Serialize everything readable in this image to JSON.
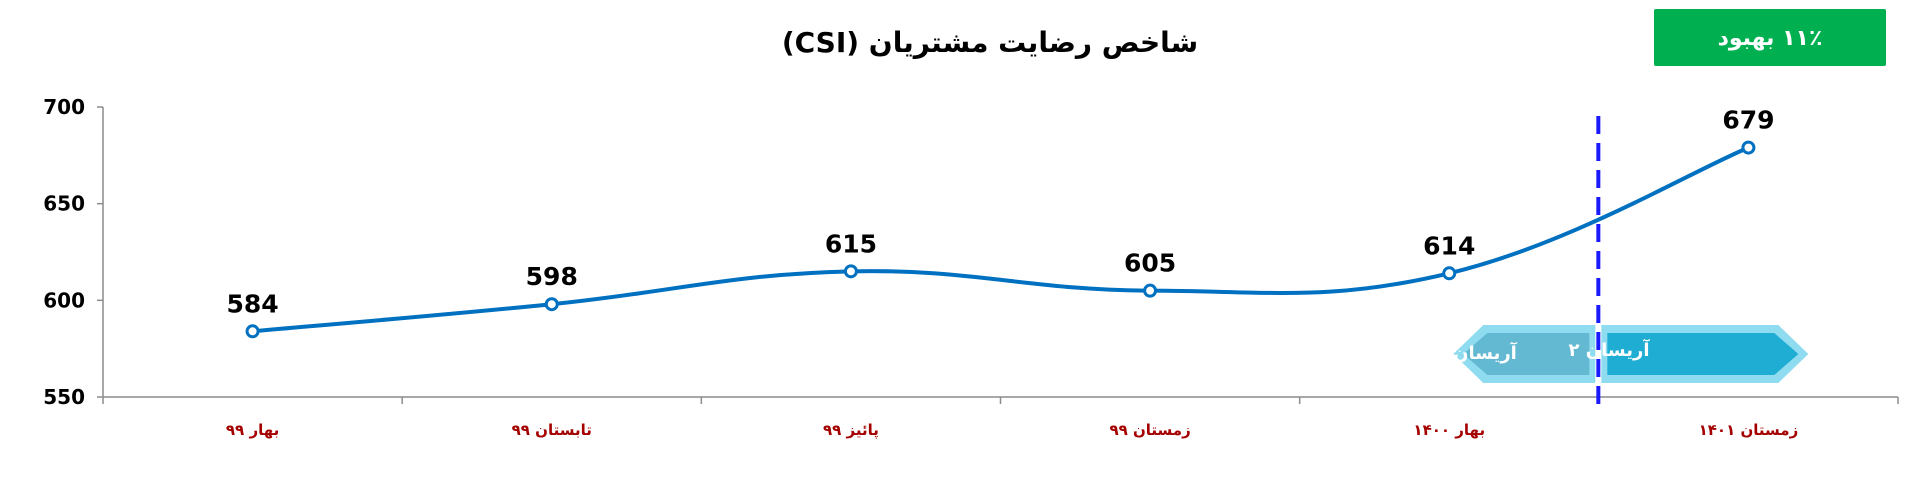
{
  "badge": {
    "text": "۱۱٪ بهبود",
    "color": "#00b050"
  },
  "chart_data": {
    "type": "line",
    "title": "شاخص رضایت مشتریان (CSI)",
    "categories": [
      "بهار ۹۹",
      "تابستان ۹۹",
      "پائیز ۹۹",
      "زمستان ۹۹",
      "بهار ۱۴۰۰",
      "زمستان ۱۴۰۱"
    ],
    "series": [
      {
        "values": [
          584,
          598,
          615,
          605,
          614,
          679
        ],
        "color": "#0070c0"
      }
    ],
    "ylim": [
      550,
      700
    ],
    "yticks": [
      550,
      600,
      650,
      700
    ],
    "xlabel": "",
    "ylabel": "",
    "grid": false,
    "legend": "none",
    "divider": {
      "between": [
        4,
        5
      ],
      "color": "#1a1aff",
      "style": "dashed"
    },
    "phases": [
      {
        "label": "آریسان",
        "color": "#63b8d2",
        "direction": "left"
      },
      {
        "label": "آریسان ۲",
        "color": "#1fadd3",
        "direction": "right"
      }
    ]
  }
}
